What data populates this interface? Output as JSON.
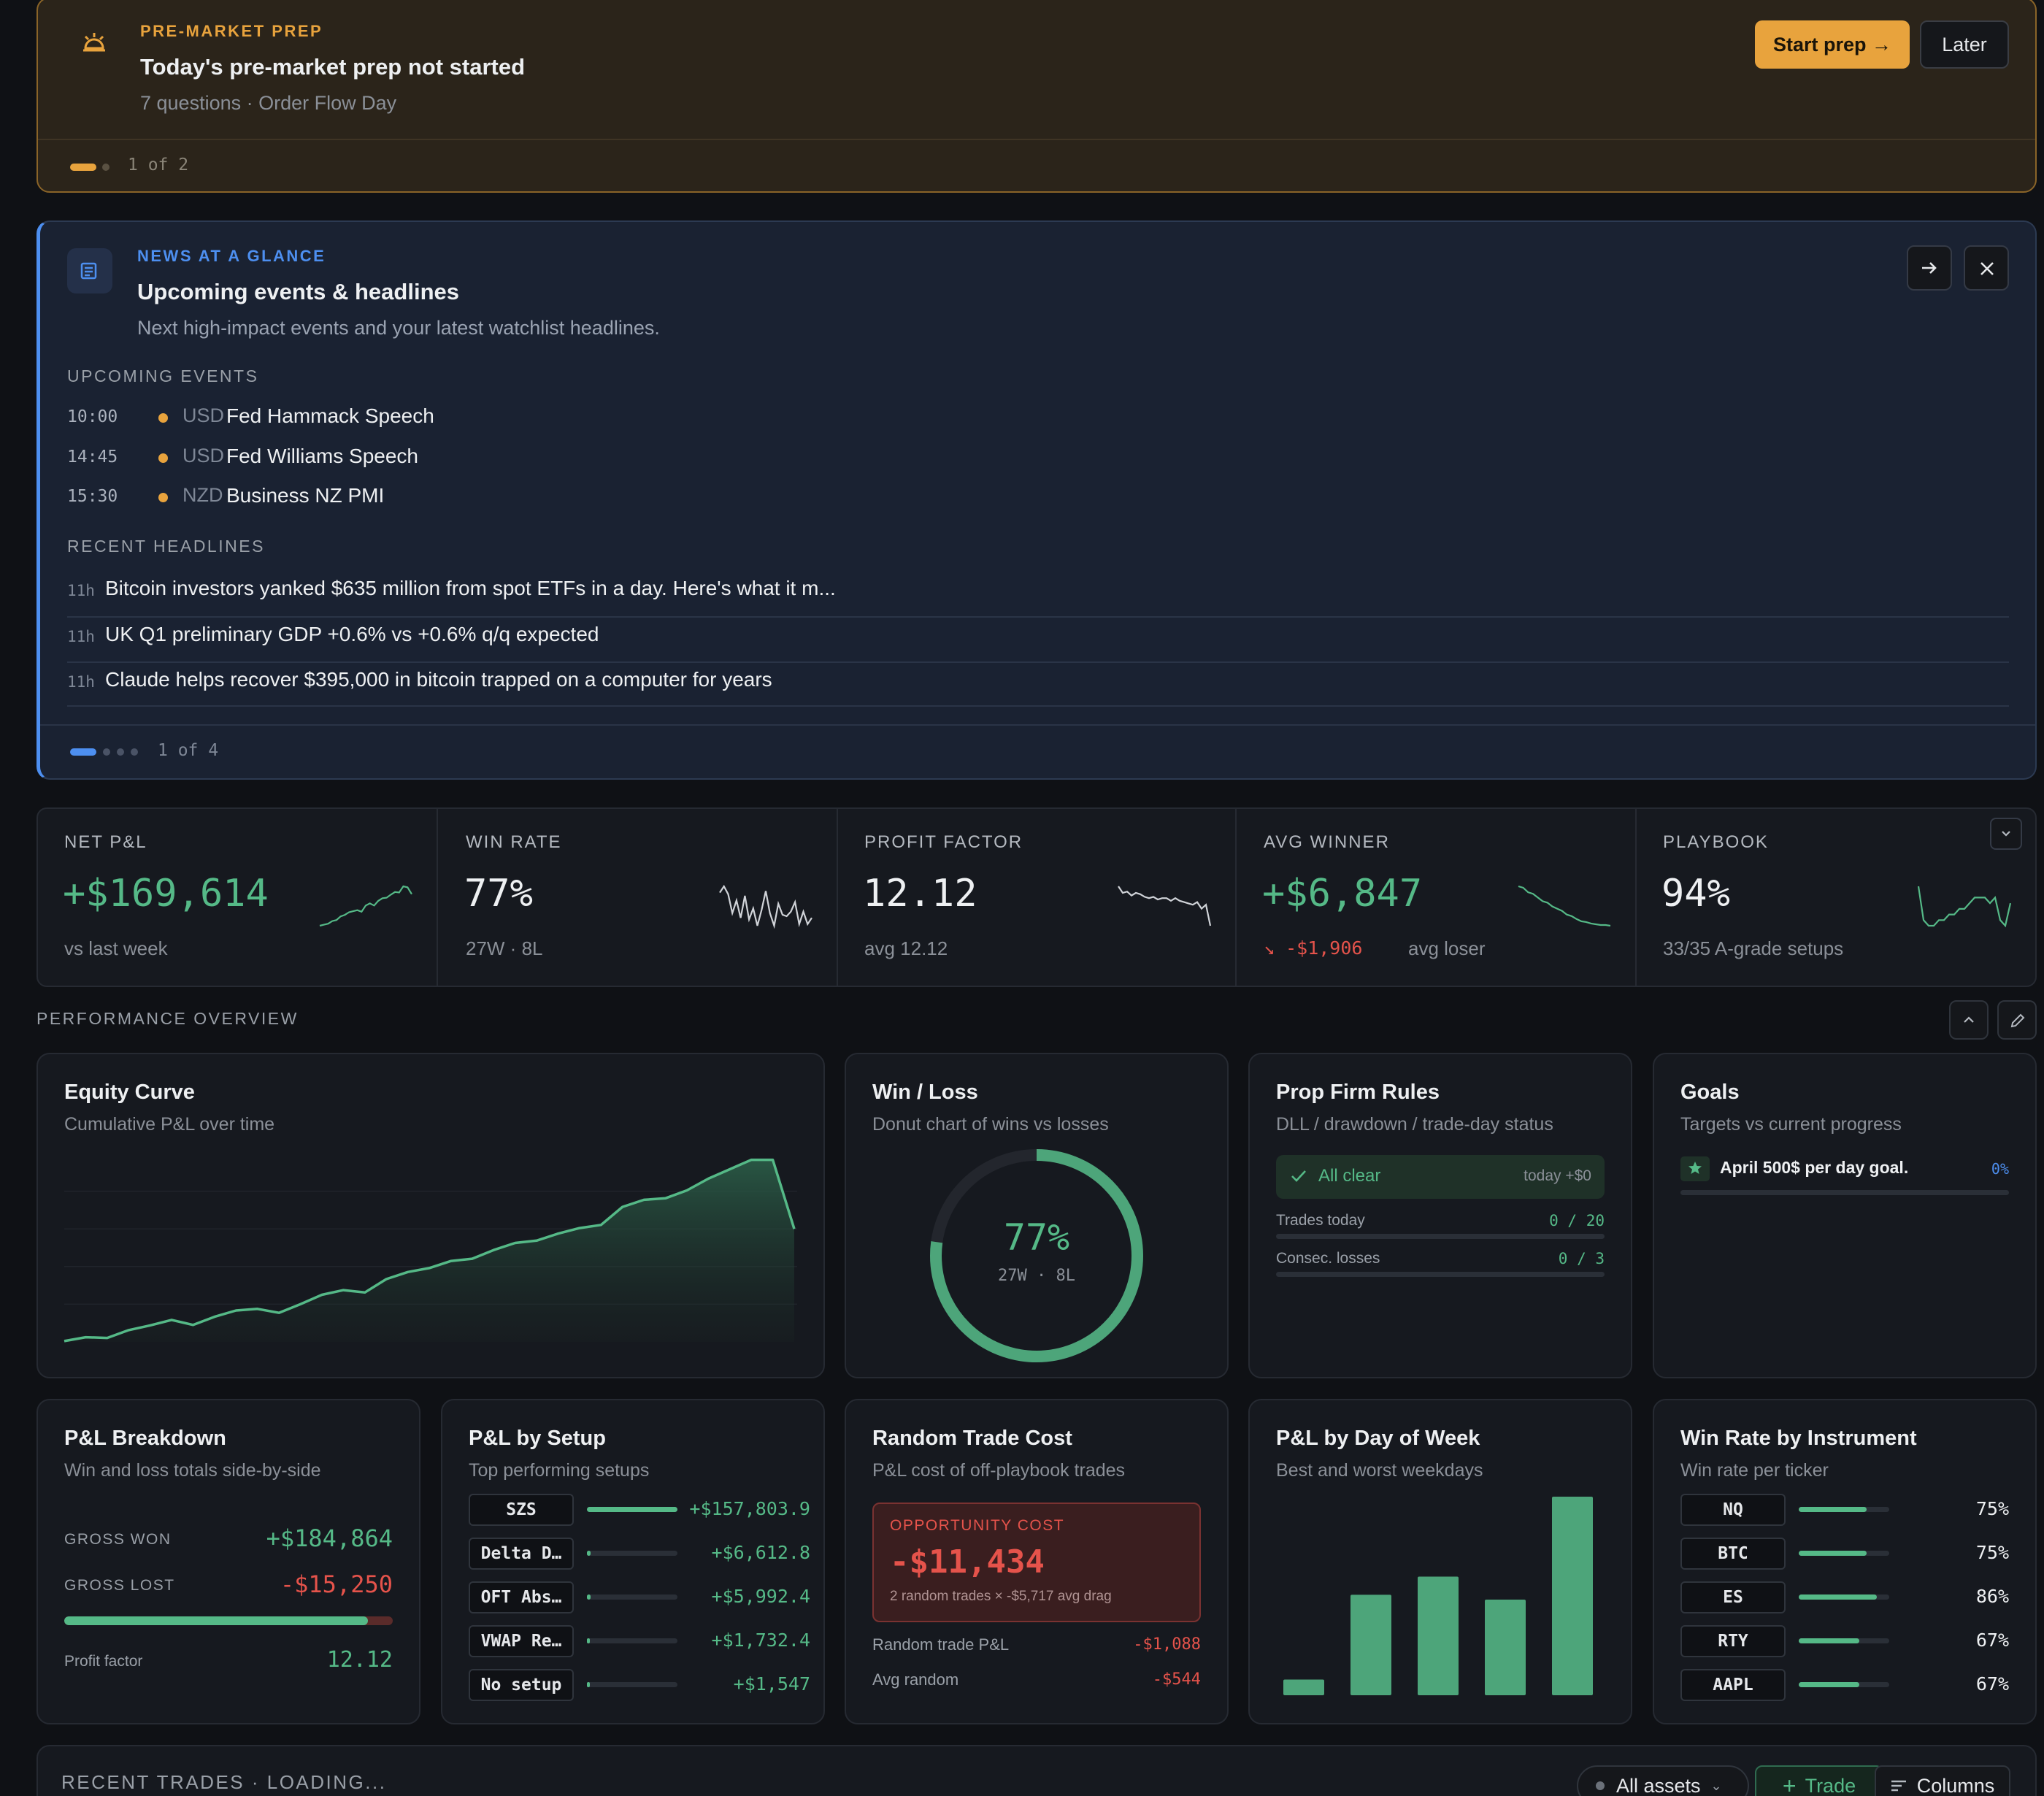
{
  "premarket": {
    "label": "PRE-MARKET PREP",
    "title": "Today's pre-market prep not started",
    "subtitle": "7 questions · Order Flow Day",
    "start_label": "Start prep →",
    "later_label": "Later",
    "pager": "1 of 2",
    "accent": "#e8a33d"
  },
  "news": {
    "label": "NEWS AT A GLANCE",
    "title": "Upcoming events & headlines",
    "subtitle": "Next high-impact events and your latest watchlist headlines.",
    "events_label": "UPCOMING EVENTS",
    "events": [
      {
        "time": "10:00",
        "currency": "USD",
        "name": "Fed Hammack Speech"
      },
      {
        "time": "14:45",
        "currency": "USD",
        "name": "Fed Williams Speech"
      },
      {
        "time": "15:30",
        "currency": "NZD",
        "name": "Business NZ PMI"
      }
    ],
    "headlines_label": "RECENT HEADLINES",
    "headlines": [
      {
        "age": "11h",
        "text": "Bitcoin investors yanked $635 million from spot ETFs in a day. Here's what it m..."
      },
      {
        "age": "11h",
        "text": "UK Q1 preliminary GDP +0.6% vs +0.6% q/q expected"
      },
      {
        "age": "11h",
        "text": "Claude helps recover $395,000 in bitcoin trapped on a computer for years"
      }
    ],
    "pager": "1 of 4",
    "accent": "#4d8ff0"
  },
  "kpis": [
    {
      "label": "NET P&L",
      "value": "+$169,614",
      "sub": "vs last week",
      "sub_prefix": ""
    },
    {
      "label": "WIN RATE",
      "value": "77%",
      "sub": "27W · 8L",
      "sub_prefix": ""
    },
    {
      "label": "PROFIT FACTOR",
      "value": "12.12",
      "sub": "avg 12.12",
      "sub_prefix": ""
    },
    {
      "label": "AVG WINNER",
      "value": "+$6,847",
      "sub": "avg loser",
      "sub_prefix": "↘ -$1,906"
    },
    {
      "label": "PLAYBOOK",
      "value": "94%",
      "sub": "33/35 A-grade setups",
      "sub_prefix": ""
    }
  ],
  "performance": {
    "label": "PERFORMANCE OVERVIEW"
  },
  "equity": {
    "title": "Equity Curve",
    "subtitle": "Cumulative P&L over time"
  },
  "winloss": {
    "title": "Win / Loss",
    "subtitle": "Donut chart of wins vs losses",
    "pct": "77%",
    "counts": "27W · 8L",
    "win_fraction": 0.77
  },
  "prop": {
    "title": "Prop Firm Rules",
    "subtitle": "DLL / drawdown / trade-day status",
    "status": "All clear",
    "status_right": "today +$0",
    "rows": [
      {
        "label": "Trades today",
        "value": "0 / 20"
      },
      {
        "label": "Consec. losses",
        "value": "0 / 3"
      }
    ]
  },
  "goals": {
    "title": "Goals",
    "subtitle": "Targets vs current progress",
    "items": [
      {
        "label": "April 500$ per day goal.",
        "pct": "0%"
      }
    ]
  },
  "breakdown": {
    "title": "P&L Breakdown",
    "subtitle": "Win and loss totals side-by-side",
    "won_label": "GROSS WON",
    "won": "+$184,864",
    "lost_label": "GROSS LOST",
    "lost": "-$15,250",
    "won_fraction": 0.924,
    "pf_label": "Profit factor",
    "pf": "12.12"
  },
  "setup": {
    "title": "P&L by Setup",
    "subtitle": "Top performing setups",
    "rows": [
      {
        "name": "SZS",
        "value": "+$157,803.9",
        "fraction": 1.0
      },
      {
        "name": "Delta D…",
        "value": "+$6,612.8",
        "fraction": 0.04
      },
      {
        "name": "OFT Abs…",
        "value": "+$5,992.4",
        "fraction": 0.04
      },
      {
        "name": "VWAP Re…",
        "value": "+$1,732.4",
        "fraction": 0.02
      },
      {
        "name": "No setup",
        "value": "+$1,547",
        "fraction": 0.02
      }
    ]
  },
  "random": {
    "title": "Random Trade Cost",
    "subtitle": "P&L cost of off-playbook trades",
    "box_label": "OPPORTUNITY COST",
    "box_value": "-$11,434",
    "box_sub": "2 random trades × -$5,717 avg drag",
    "rows": [
      {
        "label": "Random trade P&L",
        "value": "-$1,088"
      },
      {
        "label": "Avg random",
        "value": "-$544"
      }
    ]
  },
  "dow": {
    "title": "P&L by Day of Week",
    "subtitle": "Best and worst weekdays"
  },
  "instrument": {
    "title": "Win Rate by Instrument",
    "subtitle": "Win rate per ticker",
    "rows": [
      {
        "name": "NQ",
        "pct": "75%",
        "fraction": 0.75
      },
      {
        "name": "BTC",
        "pct": "75%",
        "fraction": 0.75
      },
      {
        "name": "ES",
        "pct": "86%",
        "fraction": 0.86
      },
      {
        "name": "RTY",
        "pct": "67%",
        "fraction": 0.67
      },
      {
        "name": "AAPL",
        "pct": "67%",
        "fraction": 0.67
      }
    ]
  },
  "recent": {
    "label": "RECENT TRADES · LOADING...",
    "assets_label": "All assets",
    "trade_label": "Trade",
    "columns_label": "Columns"
  },
  "chart_data": [
    {
      "type": "area",
      "title": "Equity Curve",
      "subtitle": "Cumulative P&L over time",
      "x": [
        1,
        2,
        3,
        4,
        5,
        6,
        7,
        8,
        9,
        10,
        11,
        12,
        13,
        14,
        15,
        16,
        17,
        18,
        19,
        20,
        21,
        22,
        23,
        24,
        25,
        26,
        27,
        28,
        29,
        30,
        31,
        32,
        33,
        34,
        35
      ],
      "y": [
        500,
        3000,
        2500,
        7500,
        10500,
        14000,
        10800,
        16000,
        20000,
        21000,
        18500,
        24000,
        30000,
        33000,
        31500,
        40000,
        44500,
        47000,
        51500,
        53000,
        58500,
        63000,
        64500,
        69000,
        72500,
        74500,
        86000,
        90500,
        91500,
        96500,
        104000,
        110000,
        116000,
        116000,
        72000
      ]
    },
    {
      "type": "pie",
      "title": "Win / Loss",
      "categories": [
        "Wins",
        "Losses"
      ],
      "values": [
        27,
        8
      ]
    },
    {
      "type": "bar",
      "title": "P&L by Day of Week",
      "categories": [
        "",
        "",
        "",
        "",
        ""
      ],
      "values": [
        13000,
        83000,
        98000,
        79000,
        164000
      ]
    },
    {
      "type": "line",
      "title": "NET P&L",
      "y": [
        10,
        12,
        14,
        19,
        21,
        28,
        31,
        36,
        38,
        40,
        37,
        49,
        53,
        49,
        58,
        63,
        64,
        70,
        75,
        74,
        86,
        84,
        71
      ]
    },
    {
      "type": "line",
      "title": "WIN RATE",
      "y": [
        78,
        82,
        77,
        65,
        73,
        62,
        76,
        61,
        68,
        57,
        67,
        79,
        65,
        57,
        71,
        64,
        63,
        66,
        72,
        58,
        66,
        58,
        62
      ]
    },
    {
      "type": "line",
      "title": "PROFIT FACTOR",
      "y": [
        85,
        80,
        81,
        78,
        80,
        79,
        77,
        76,
        77,
        75,
        76,
        76,
        74,
        76,
        74,
        73,
        72,
        71,
        73,
        68,
        71,
        55
      ]
    },
    {
      "type": "line",
      "title": "AVG WINNER",
      "y": [
        90,
        88,
        82,
        80,
        75,
        70,
        68,
        63,
        60,
        57,
        52,
        50,
        46,
        43,
        42,
        40,
        39,
        38,
        38,
        37
      ]
    },
    {
      "type": "line",
      "title": "PLAYBOOK",
      "y": [
        96,
        90,
        89,
        89,
        90,
        90,
        91,
        91,
        92,
        92,
        93,
        94,
        94,
        94,
        93,
        94,
        90,
        89,
        93
      ]
    }
  ]
}
